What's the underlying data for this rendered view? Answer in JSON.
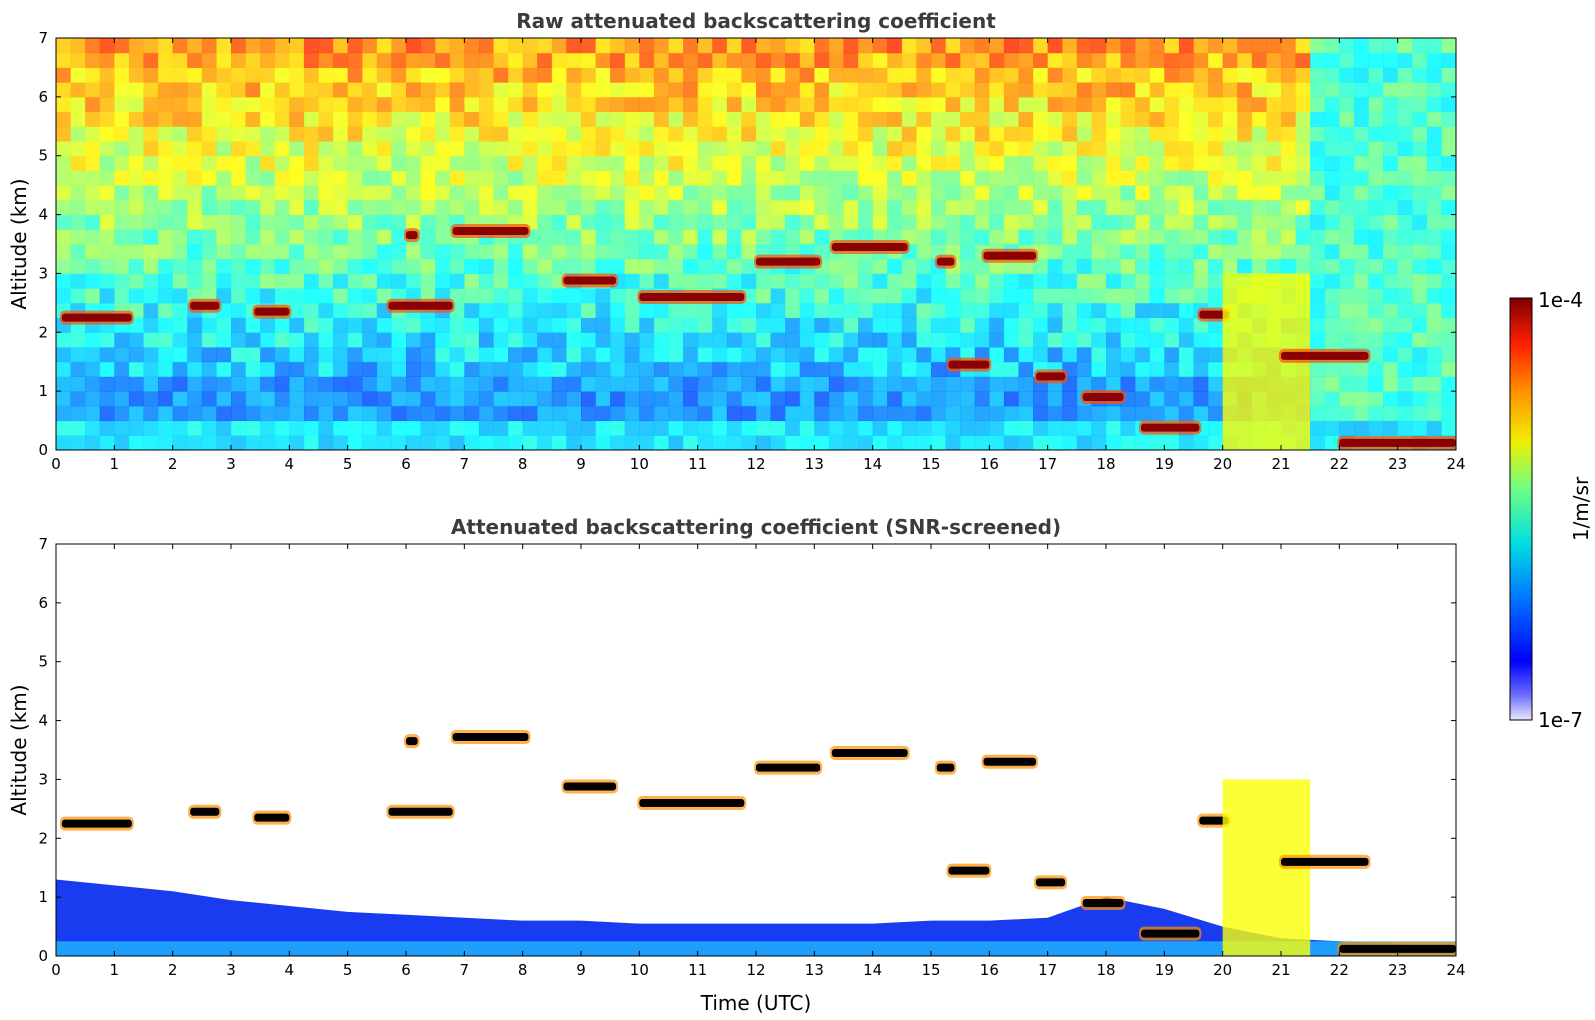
{
  "chart_data": [
    {
      "type": "heatmap",
      "title": "Raw attenuated backscattering coefficient",
      "xlabel": "",
      "ylabel": "Altitude (km)",
      "xlim": [
        0,
        24
      ],
      "ylim": [
        0,
        7
      ],
      "xticks": [
        "0",
        "1",
        "2",
        "3",
        "4",
        "5",
        "6",
        "7",
        "8",
        "9",
        "10",
        "11",
        "12",
        "13",
        "14",
        "15",
        "16",
        "17",
        "18",
        "19",
        "20",
        "21",
        "22",
        "23",
        "24"
      ],
      "yticks": [
        "0",
        "1",
        "2",
        "3",
        "4",
        "5",
        "6",
        "7"
      ],
      "colormap": "jet",
      "background_noise": "present",
      "features": [
        {
          "kind": "cloud_layer",
          "x": [
            0.1,
            1.3
          ],
          "y": 2.25,
          "intensity": 1.0
        },
        {
          "kind": "cloud_layer",
          "x": [
            2.3,
            2.8
          ],
          "y": 2.45,
          "intensity": 1.0
        },
        {
          "kind": "cloud_layer",
          "x": [
            3.4,
            4.0
          ],
          "y": 2.35,
          "intensity": 1.0
        },
        {
          "kind": "cloud_layer",
          "x": [
            5.7,
            6.8
          ],
          "y": 2.45,
          "intensity": 1.0
        },
        {
          "kind": "cloud_layer",
          "x": [
            6.0,
            6.2
          ],
          "y": 3.65,
          "intensity": 1.0
        },
        {
          "kind": "cloud_layer",
          "x": [
            6.8,
            8.1
          ],
          "y": 3.72,
          "intensity": 1.0
        },
        {
          "kind": "cloud_layer",
          "x": [
            8.7,
            9.6
          ],
          "y": 2.88,
          "intensity": 1.0
        },
        {
          "kind": "cloud_layer",
          "x": [
            10.0,
            11.8
          ],
          "y": 2.6,
          "intensity": 1.0
        },
        {
          "kind": "cloud_layer",
          "x": [
            12.0,
            13.1
          ],
          "y": 3.2,
          "intensity": 1.0
        },
        {
          "kind": "cloud_layer",
          "x": [
            13.3,
            14.6
          ],
          "y": 3.45,
          "intensity": 1.0
        },
        {
          "kind": "cloud_layer",
          "x": [
            15.1,
            15.4
          ],
          "y": 3.2,
          "intensity": 1.0
        },
        {
          "kind": "cloud_layer",
          "x": [
            15.9,
            16.8
          ],
          "y": 3.3,
          "intensity": 1.0
        },
        {
          "kind": "cloud_layer",
          "x": [
            15.3,
            16.0
          ],
          "y": 1.45,
          "intensity": 1.0
        },
        {
          "kind": "cloud_layer",
          "x": [
            16.8,
            17.3
          ],
          "y": 1.25,
          "intensity": 1.0
        },
        {
          "kind": "cloud_layer",
          "x": [
            17.6,
            18.3
          ],
          "y": 0.9,
          "intensity": 1.0
        },
        {
          "kind": "cloud_layer",
          "x": [
            18.6,
            19.6
          ],
          "y": 0.38,
          "intensity": 1.0
        },
        {
          "kind": "cloud_layer",
          "x": [
            19.6,
            20.1
          ],
          "y": 2.3,
          "intensity": 1.0
        },
        {
          "kind": "precip_band",
          "x": [
            20.0,
            21.5
          ],
          "y": [
            0.0,
            3.0
          ],
          "intensity": 0.8
        },
        {
          "kind": "cloud_layer",
          "x": [
            21.0,
            22.5
          ],
          "y": 1.6,
          "intensity": 1.0
        },
        {
          "kind": "cloud_layer",
          "x": [
            22.0,
            24.0
          ],
          "y": 0.12,
          "intensity": 1.0
        }
      ]
    },
    {
      "type": "heatmap",
      "title": "Attenuated backscattering coefficient (SNR-screened)",
      "xlabel": "Time (UTC)",
      "ylabel": "Altitude (km)",
      "xlim": [
        0,
        24
      ],
      "ylim": [
        0,
        7
      ],
      "xticks": [
        "0",
        "1",
        "2",
        "3",
        "4",
        "5",
        "6",
        "7",
        "8",
        "9",
        "10",
        "11",
        "12",
        "13",
        "14",
        "15",
        "16",
        "17",
        "18",
        "19",
        "20",
        "21",
        "22",
        "23",
        "24"
      ],
      "yticks": [
        "0",
        "1",
        "2",
        "3",
        "4",
        "5",
        "6",
        "7"
      ],
      "colormap": "jet",
      "background_noise": "screened",
      "boundary_layer_top_km": [
        1.3,
        1.2,
        1.1,
        0.95,
        0.85,
        0.75,
        0.7,
        0.65,
        0.6,
        0.6,
        0.55,
        0.55,
        0.55,
        0.55,
        0.55,
        0.6,
        0.6,
        0.65,
        1.0,
        0.8,
        0.5,
        0.3,
        0.25,
        0.2,
        0.15
      ],
      "features": [
        {
          "kind": "cloud_layer",
          "x": [
            0.1,
            1.3
          ],
          "y": 2.25,
          "intensity": 1.0
        },
        {
          "kind": "cloud_layer",
          "x": [
            2.3,
            2.8
          ],
          "y": 2.45,
          "intensity": 1.0
        },
        {
          "kind": "cloud_layer",
          "x": [
            3.4,
            4.0
          ],
          "y": 2.35,
          "intensity": 1.0
        },
        {
          "kind": "cloud_layer",
          "x": [
            5.7,
            6.8
          ],
          "y": 2.45,
          "intensity": 1.0
        },
        {
          "kind": "cloud_layer",
          "x": [
            6.0,
            6.2
          ],
          "y": 3.65,
          "intensity": 1.0
        },
        {
          "kind": "cloud_layer",
          "x": [
            6.8,
            8.1
          ],
          "y": 3.72,
          "intensity": 1.0
        },
        {
          "kind": "cloud_layer",
          "x": [
            8.7,
            9.6
          ],
          "y": 2.88,
          "intensity": 1.0
        },
        {
          "kind": "cloud_layer",
          "x": [
            10.0,
            11.8
          ],
          "y": 2.6,
          "intensity": 1.0
        },
        {
          "kind": "cloud_layer",
          "x": [
            12.0,
            13.1
          ],
          "y": 3.2,
          "intensity": 1.0
        },
        {
          "kind": "cloud_layer",
          "x": [
            13.3,
            14.6
          ],
          "y": 3.45,
          "intensity": 1.0
        },
        {
          "kind": "cloud_layer",
          "x": [
            15.1,
            15.4
          ],
          "y": 3.2,
          "intensity": 1.0
        },
        {
          "kind": "cloud_layer",
          "x": [
            15.9,
            16.8
          ],
          "y": 3.3,
          "intensity": 1.0
        },
        {
          "kind": "cloud_layer",
          "x": [
            15.3,
            16.0
          ],
          "y": 1.45,
          "intensity": 1.0
        },
        {
          "kind": "cloud_layer",
          "x": [
            16.8,
            17.3
          ],
          "y": 1.25,
          "intensity": 1.0
        },
        {
          "kind": "cloud_layer",
          "x": [
            17.6,
            18.3
          ],
          "y": 0.9,
          "intensity": 1.0
        },
        {
          "kind": "cloud_layer",
          "x": [
            18.6,
            19.6
          ],
          "y": 0.38,
          "intensity": 1.0
        },
        {
          "kind": "cloud_layer",
          "x": [
            19.6,
            20.1
          ],
          "y": 2.3,
          "intensity": 1.0
        },
        {
          "kind": "precip_band",
          "x": [
            20.0,
            21.5
          ],
          "y": [
            0.0,
            3.0
          ],
          "intensity": 0.8
        },
        {
          "kind": "cloud_layer",
          "x": [
            21.0,
            22.5
          ],
          "y": 1.6,
          "intensity": 1.0
        },
        {
          "kind": "cloud_layer",
          "x": [
            22.0,
            24.0
          ],
          "y": 0.12,
          "intensity": 1.0
        }
      ]
    }
  ],
  "colorbar": {
    "max_label": "1e-4",
    "min_label": "1e-7",
    "unit_label": "1/m/sr",
    "colormap": "jet"
  },
  "colors": {
    "axes": "#000000",
    "title": "#3c3c3c",
    "cloud_core": "#8b0000"
  }
}
